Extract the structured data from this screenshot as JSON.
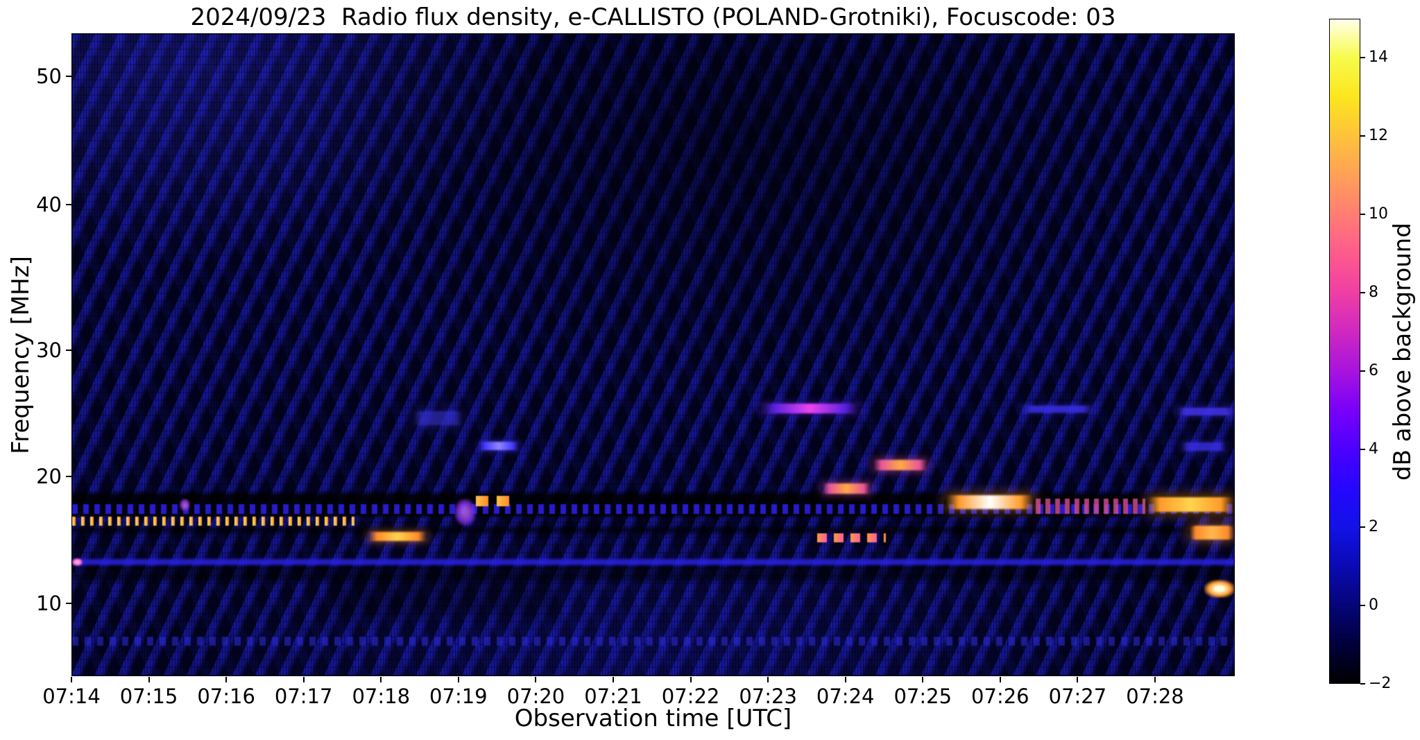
{
  "figure": {
    "title": "2024/09/23  Radio flux density, e-CALLISTO (POLAND-Grotniki), Focuscode: 03",
    "xlabel": "Observation time [UTC]",
    "ylabel": "Frequency [MHz]",
    "colorbar_label": "dB above background"
  },
  "chart_data": {
    "type": "heatmap",
    "title": "2024/09/23  Radio flux density, e-CALLISTO (POLAND-Grotniki), Focuscode: 03",
    "date": "2024/09/23",
    "instrument": "e-CALLISTO",
    "station": "POLAND-Grotniki",
    "focuscode": "03",
    "xlabel": "Observation time [UTC]",
    "ylabel": "Frequency [MHz]",
    "x_ticks": [
      {
        "label": "07:14",
        "minutes": 0
      },
      {
        "label": "07:15",
        "minutes": 1
      },
      {
        "label": "07:16",
        "minutes": 2
      },
      {
        "label": "07:17",
        "minutes": 3
      },
      {
        "label": "07:18",
        "minutes": 4
      },
      {
        "label": "07:19",
        "minutes": 5
      },
      {
        "label": "07:20",
        "minutes": 6
      },
      {
        "label": "07:21",
        "minutes": 7
      },
      {
        "label": "07:22",
        "minutes": 8
      },
      {
        "label": "07:23",
        "minutes": 9
      },
      {
        "label": "07:24",
        "minutes": 10
      },
      {
        "label": "07:25",
        "minutes": 11
      },
      {
        "label": "07:26",
        "minutes": 12
      },
      {
        "label": "07:27",
        "minutes": 13
      },
      {
        "label": "07:28",
        "minutes": 14
      }
    ],
    "y_ticks": [
      {
        "label": "50",
        "mhz": 50
      },
      {
        "label": "40",
        "mhz": 40
      },
      {
        "label": "30",
        "mhz": 30
      },
      {
        "label": "20",
        "mhz": 20
      },
      {
        "label": "10",
        "mhz": 10
      }
    ],
    "x_range_minutes": [
      0,
      15.03
    ],
    "time_range_utc": [
      "07:14",
      "07:29"
    ],
    "y_range_mhz": [
      4.3,
      52.7
    ],
    "grid": false,
    "background_base_color": "#06062c",
    "background_ripple_color": "#1e1ed2",
    "colorbar": {
      "label": "dB above background",
      "range_db": [
        -2,
        15
      ],
      "ticks": [
        {
          "label": "14",
          "value": 14
        },
        {
          "label": "12",
          "value": 12
        },
        {
          "label": "10",
          "value": 10
        },
        {
          "label": "8",
          "value": 8
        },
        {
          "label": "6",
          "value": 6
        },
        {
          "label": "4",
          "value": 4
        },
        {
          "label": "2",
          "value": 2
        },
        {
          "label": "0",
          "value": 0
        },
        {
          "label": "−2",
          "value": -2
        }
      ],
      "colormap_stops_bottom_to_top": [
        "#000000",
        "#00003c",
        "#050578",
        "#0a0ab4",
        "#1212e6",
        "#2606ff",
        "#4c00ff",
        "#7a00f8",
        "#a714dd",
        "#cf28c0",
        "#ef3ea4",
        "#ff5a8c",
        "#ff7d73",
        "#ffa057",
        "#fec23b",
        "#fce51e",
        "#f8fa4a",
        "#ffffe8"
      ]
    },
    "features": [
      {
        "name": "dark-band-17-19mhz",
        "t0": 0,
        "t1": 15.03,
        "f0": 16.9,
        "f1": 18.75,
        "kind": "band",
        "color": "#000000",
        "op": 0.85
      },
      {
        "name": "blue-dash-row-17mhz",
        "t0": 0,
        "t1": 15.03,
        "f0": 17.1,
        "f1": 17.85,
        "kind": "dots",
        "color": "#2b1fe0",
        "p": 16,
        "w": 8,
        "op": 0.9
      },
      {
        "name": "dark-band-15-16mhz",
        "t0": 0,
        "t1": 15.03,
        "f0": 15.5,
        "f1": 16.1,
        "kind": "band",
        "color": "#000000",
        "op": 0.55
      },
      {
        "name": "rfi-dotted-line-16p5mhz",
        "t0": 0,
        "t1": 3.65,
        "f0": 16.15,
        "f1": 16.9,
        "kind": "dots",
        "color": "#ff8c2a",
        "core": "#ffe96a",
        "p": 13,
        "w": 5
      },
      {
        "name": "dark-patch-bottom-0718",
        "t0": 3.3,
        "t1": 6.3,
        "f0": 9.0,
        "f1": 12.0,
        "kind": "band",
        "color": "#000000",
        "op": 0.3,
        "blur": 8
      },
      {
        "name": "blue-line-13p5mhz",
        "t0": 0,
        "t1": 15.03,
        "f0": 13.05,
        "f1": 13.55,
        "kind": "band",
        "color": "#2a22e8",
        "op": 0.8,
        "blur": 1.5
      },
      {
        "name": "dark-band-12mhz",
        "t0": 0,
        "t1": 15.03,
        "f0": 11.8,
        "f1": 13.0,
        "kind": "band",
        "color": "#000000",
        "op": 0.45
      },
      {
        "name": "blue-dot-row-7mhz",
        "t0": 0,
        "t1": 15.03,
        "f0": 6.75,
        "f1": 7.45,
        "kind": "dots",
        "color": "#2a2ad0",
        "p": 18,
        "w": 9,
        "op": 0.6
      },
      {
        "name": "pink-blip-left-13mhz",
        "t0": 0,
        "t1": 0.13,
        "f0": 13.0,
        "f1": 13.6,
        "kind": "glow",
        "color": "#ff66cc",
        "core": "#ffaadd"
      },
      {
        "name": "purple-blip-0715",
        "t0": 1.39,
        "t1": 1.52,
        "f0": 17.3,
        "f1": 18.3,
        "kind": "glow",
        "color": "#8833cc",
        "core": "#bb66ee",
        "op": 0.8
      },
      {
        "name": "yellow-streak-0718-15p5mhz",
        "t0": 3.81,
        "t1": 4.6,
        "f0": 14.95,
        "f1": 15.7,
        "kind": "solid",
        "color": "#ff8c2a",
        "core": "#ffd34d"
      },
      {
        "name": "violet-wedge-0719",
        "t0": 4.94,
        "t1": 5.22,
        "f0": 16.2,
        "f1": 18.3,
        "kind": "glow",
        "color": "#7a2bd9",
        "core": "#a85ce8",
        "op": 0.85
      },
      {
        "name": "orange-dashes-0719-18mhz",
        "t0": 5.22,
        "t1": 5.72,
        "f0": 17.7,
        "f1": 18.5,
        "kind": "dots",
        "color": "#ff8c2a",
        "core": "#ffc44d",
        "p": 30,
        "w": 18
      },
      {
        "name": "blue-streak-0719-22p5mhz",
        "t0": 5.24,
        "t1": 5.78,
        "f0": 22.15,
        "f1": 22.8,
        "kind": "solid",
        "color": "#4338ff",
        "core": "#8f86ff"
      },
      {
        "name": "blue-smudge-0719-24p5mhz",
        "t0": 4.39,
        "t1": 5.06,
        "f0": 24.1,
        "f1": 25.2,
        "kind": "solid",
        "color": "#3a35d8",
        "op": 0.6
      },
      {
        "name": "magenta-streak-25mhz-0723",
        "t0": 8.87,
        "t1": 10.19,
        "f0": 25.05,
        "f1": 25.8,
        "kind": "solid",
        "color": "#5a22e0",
        "core": "#ee44ee"
      },
      {
        "name": "pink-streak-0724-19mhz",
        "t0": 9.68,
        "t1": 10.33,
        "f0": 18.7,
        "f1": 19.5,
        "kind": "solid",
        "color": "#e8559a",
        "core": "#ffaa44"
      },
      {
        "name": "pink-streak-0724-21mhz",
        "t0": 10.33,
        "t1": 11.07,
        "f0": 20.55,
        "f1": 21.4,
        "kind": "solid",
        "color": "#e8559a",
        "core": "#ffaa44"
      },
      {
        "name": "pink-dashes-0724-15p5mhz",
        "t0": 9.63,
        "t1": 10.51,
        "f0": 14.85,
        "f1": 15.6,
        "kind": "dots",
        "color": "#ff5fa0",
        "core": "#ff9a3c",
        "p": 24,
        "w": 14
      },
      {
        "name": "bright-streak-0726-18mhz",
        "t0": 11.27,
        "t1": 12.45,
        "f0": 17.5,
        "f1": 18.6,
        "kind": "solid",
        "color": "#ff9a2a",
        "core": "#ffffff"
      },
      {
        "name": "pink-dash-band-0726",
        "t0": 12.45,
        "t1": 13.87,
        "f0": 17.1,
        "f1": 18.3,
        "kind": "dots",
        "color": "#d84f92",
        "p": 14,
        "w": 7,
        "op": 0.8
      },
      {
        "name": "orange-streak-0727-18mhz",
        "t0": 13.87,
        "t1": 15.03,
        "f0": 17.25,
        "f1": 18.4,
        "kind": "solid",
        "color": "#ff9a2a",
        "core": "#ffd34d"
      },
      {
        "name": "orange-streak-right-15p5mhz",
        "t0": 14.42,
        "t1": 15.03,
        "f0": 15.1,
        "f1": 16.2,
        "kind": "solid",
        "color": "#ff8c2a",
        "core": "#ffb84d"
      },
      {
        "name": "yellow-blob-right-11mhz",
        "t0": 14.63,
        "t1": 15.02,
        "f0": 10.5,
        "f1": 11.9,
        "kind": "glow",
        "color": "#ff9a2a",
        "core": "#ffffdd"
      },
      {
        "name": "faint-blue-25mhz-0726",
        "t0": 12.23,
        "t1": 13.22,
        "f0": 25.1,
        "f1": 25.65,
        "kind": "solid",
        "color": "#3a2fe8",
        "op": 0.85
      },
      {
        "name": "faint-blue-25mhz-right",
        "t0": 14.26,
        "t1": 15.03,
        "f0": 24.9,
        "f1": 25.5,
        "kind": "solid",
        "color": "#4433ee",
        "op": 0.85
      },
      {
        "name": "faint-blue-22mhz-right",
        "t0": 14.31,
        "t1": 14.92,
        "f0": 22.1,
        "f1": 22.75,
        "kind": "solid",
        "color": "#3a2fe8",
        "op": 0.8
      }
    ]
  }
}
